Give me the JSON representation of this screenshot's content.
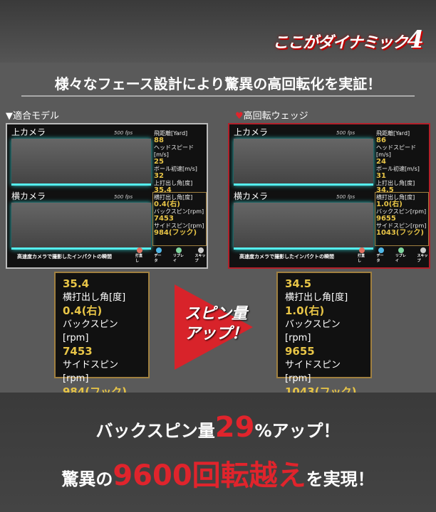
{
  "header": {
    "logo": "ここがダイナミック",
    "logo_number": "4"
  },
  "headline": "様々なフェース設計により驚異の高回転化を実証！",
  "panels": [
    {
      "label": "▼適合モデル",
      "top_camera": "上カメラ",
      "side_camera": "横カメラ",
      "fps": "500 fps",
      "stats": [
        {
          "k": "飛距離[Yard]",
          "v": "88"
        },
        {
          "k": "ヘッドスピード[m/s]",
          "v": "25"
        },
        {
          "k": "ボール初速[m/s]",
          "v": "32"
        },
        {
          "k": "上打出し角[度]",
          "v": "35.4"
        },
        {
          "k": "横打出し角[度]",
          "v": "0.4(右)"
        },
        {
          "k": "バックスピン[rpm]",
          "v": "7453"
        },
        {
          "k": "サイドスピン[rpm]",
          "v": "984(フック)"
        }
      ]
    },
    {
      "label": "高回転ウェッジ",
      "top_camera": "上カメラ",
      "side_camera": "横カメラ",
      "fps": "500 fps",
      "stats": [
        {
          "k": "飛距離[Yard]",
          "v": "86"
        },
        {
          "k": "ヘッドスピード[m/s]",
          "v": "24"
        },
        {
          "k": "ボール初速[m/s]",
          "v": "31"
        },
        {
          "k": "上打出し角[度]",
          "v": "34.5"
        },
        {
          "k": "横打出し角[度]",
          "v": "1.0(右)"
        },
        {
          "k": "バックスピン[rpm]",
          "v": "9655"
        },
        {
          "k": "サイドスピン[rpm]",
          "v": "1043(フック)"
        }
      ]
    }
  ],
  "caption": "高速度カメラで撮影したインパクトの瞬間",
  "buttons": [
    {
      "label": "打直し",
      "color": "#e07060"
    },
    {
      "label": "データ",
      "color": "#50b8e8"
    },
    {
      "label": "リプレイ",
      "color": "#80d8a0"
    },
    {
      "label": "スキップ",
      "color": "#cccccc"
    }
  ],
  "arrow": {
    "line1": "スピン量",
    "line2": "アップ！"
  },
  "bottom": {
    "l1a": "バックスピン量",
    "l1b": "29",
    "l1c": "%アップ！",
    "l2a": "驚異の",
    "l2b": "9600回転越え",
    "l2c": "を実現！"
  }
}
